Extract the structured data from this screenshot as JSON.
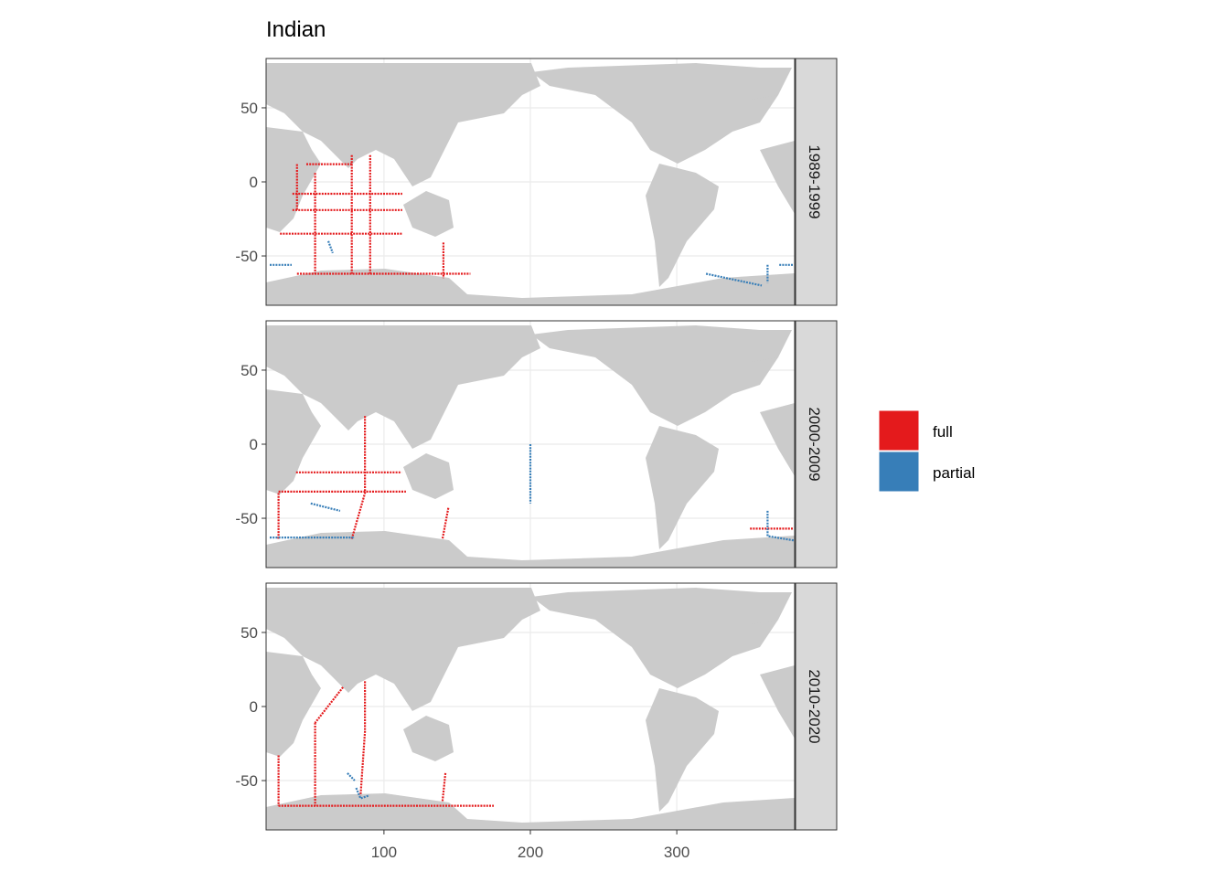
{
  "chart_data": {
    "type": "map",
    "title": "Indian",
    "xlim": [
      19.5,
      380.5
    ],
    "ylim": [
      -83.3,
      83.3
    ],
    "xticks": [
      100,
      200,
      300
    ],
    "yticks": [
      -50,
      0,
      50
    ],
    "grid": true,
    "series": [
      {
        "name": "full",
        "color": "#e41a1c"
      },
      {
        "name": "partial",
        "color": "#377eb8"
      }
    ],
    "facets": [
      {
        "label": "1989-1999",
        "tracks": [
          {
            "x": [
              37.5,
              112.5,
              null,
              37.5,
              112.5,
              null,
              78,
              78,
              null,
              90.6,
              90.6,
              null,
              53,
              53,
              null,
              29,
              112.5,
              null,
              40.6,
              159,
              null,
              140.6,
              140.6,
              null,
              40.6,
              40.6,
              null,
              47,
              78
            ],
            "y": [
              -8,
              -8,
              null,
              -19,
              -19,
              null,
              18,
              -62,
              null,
              18,
              -62,
              null,
              6,
              -62,
              null,
              -35,
              -35,
              null,
              -62,
              -62,
              null,
              -41,
              -65,
              null,
              12,
              -19,
              null,
              12,
              12
            ]
          },
          {
            "x": [
              62,
              65,
              null,
              22,
              37,
              null,
              370,
              380,
              null,
              362,
              362,
              null,
              320,
              358
            ],
            "y": [
              -40,
              -48,
              null,
              -56,
              -56,
              null,
              -56,
              -56,
              null,
              -56,
              -68,
              null,
              -62,
              -70
            ]
          }
        ]
      },
      {
        "label": "2000-2009",
        "tracks": [
          {
            "x": [
              87,
              87,
              78,
              null,
              28,
              115,
              null,
              40,
              112,
              null,
              28,
              28,
              null,
              144,
              140,
              null,
              350,
              380
            ],
            "y": [
              19,
              -33,
              -64,
              null,
              -32,
              -32,
              null,
              -19,
              -19,
              null,
              -33,
              -64,
              null,
              -43,
              -64,
              null,
              -57,
              -57
            ]
          },
          {
            "x": [
              50,
              70,
              null,
              200,
              200,
              null,
              362,
              362,
              380,
              null,
              22,
              80
            ],
            "y": [
              -40,
              -45,
              null,
              0,
              -40,
              null,
              -45,
              -62,
              -65,
              null,
              -63,
              -63
            ]
          }
        ]
      },
      {
        "label": "2010-2020",
        "tracks": [
          {
            "x": [
              87,
              87,
              84,
              null,
              53,
              53,
              null,
              72,
              53,
              null,
              28,
              175,
              null,
              142,
              140,
              null,
              28,
              28
            ],
            "y": [
              17,
              -17,
              -60,
              null,
              -11,
              -67,
              null,
              13,
              -11,
              null,
              -67,
              -67,
              null,
              -45,
              -64,
              null,
              -33,
              -67
            ]
          },
          {
            "x": [
              75,
              80,
              null,
              81,
              84,
              90
            ],
            "y": [
              -45,
              -50,
              null,
              -55,
              -62,
              -60
            ]
          }
        ]
      }
    ]
  }
}
